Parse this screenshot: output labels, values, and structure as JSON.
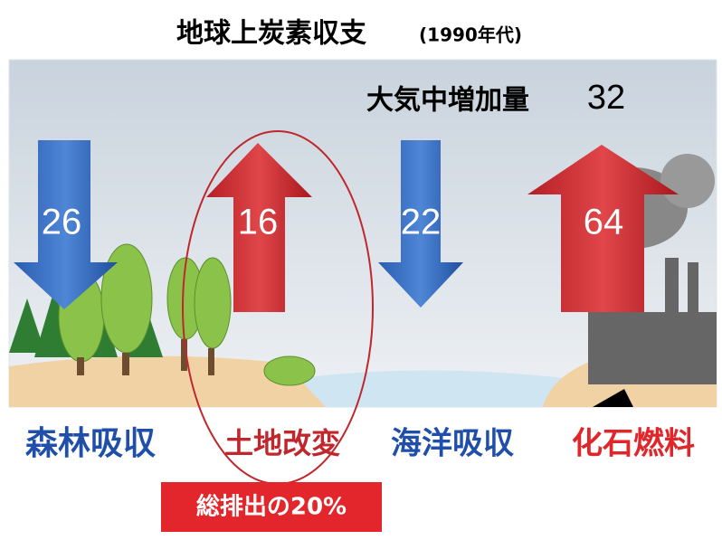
{
  "title": "地球上炭素収支",
  "period": "(1990年代)",
  "atmosphere": {
    "label": "大気中増加量",
    "value": 32
  },
  "flows": [
    {
      "label": "森林吸収",
      "value": 26
    },
    {
      "label": "土地改変",
      "value": 16
    },
    {
      "label": "海洋吸収",
      "value": 22
    },
    {
      "label": "化石燃料",
      "value": 64
    }
  ],
  "callout": "総排出の20%"
}
